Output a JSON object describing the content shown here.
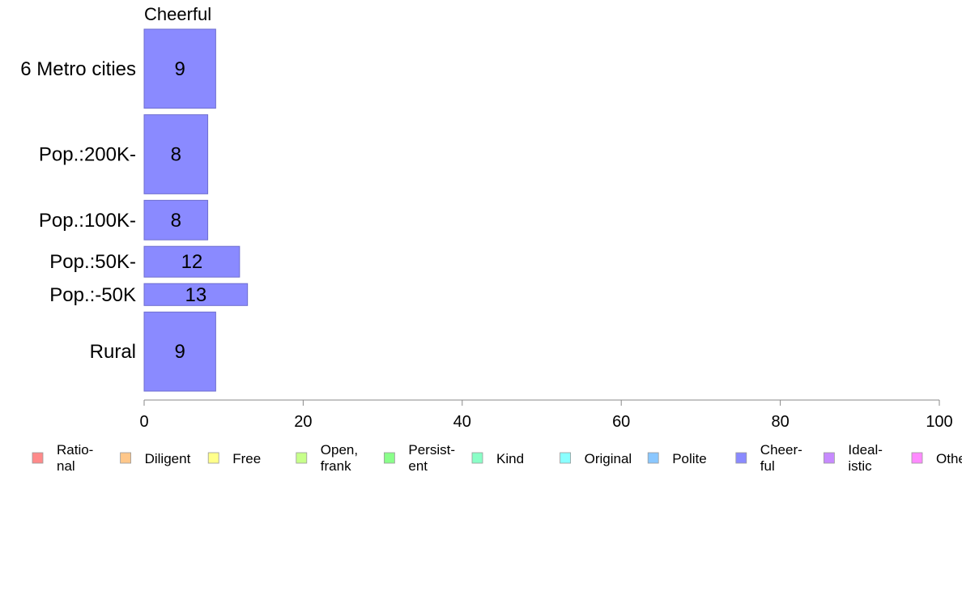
{
  "chart_data": {
    "type": "bar",
    "orientation": "horizontal",
    "title": "Cheerful",
    "categories": [
      "6 Metro cities",
      "Pop.:200K-",
      "Pop.:100K-",
      "Pop.:50K-",
      "Pop.:-50K",
      "Rural"
    ],
    "values": [
      9,
      8,
      8,
      12,
      13,
      9
    ],
    "relative_widths": [
      0.9,
      0.9,
      0.45,
      0.35,
      0.25,
      0.9
    ],
    "xlim": [
      0,
      100
    ],
    "xticks": [
      0,
      20,
      40,
      60,
      80,
      100
    ],
    "xlabel": "",
    "ylabel": "",
    "grid": false,
    "bar_color": "#8a8aff",
    "bar_stroke": "#6f6fcf",
    "legend_position": "bottom",
    "legend": [
      {
        "lines": [
          "Ratio-",
          "nal"
        ],
        "color": "#ff8a8a"
      },
      {
        "lines": [
          "Diligent"
        ],
        "color": "#ffc78a"
      },
      {
        "lines": [
          "Free"
        ],
        "color": "#ffff8a"
      },
      {
        "lines": [
          "Open,",
          "frank"
        ],
        "color": "#c7ff8a"
      },
      {
        "lines": [
          "Persist-",
          "ent"
        ],
        "color": "#8aff8a"
      },
      {
        "lines": [
          "Kind"
        ],
        "color": "#8affc7"
      },
      {
        "lines": [
          "Original"
        ],
        "color": "#8affff"
      },
      {
        "lines": [
          "Polite"
        ],
        "color": "#8ac7ff"
      },
      {
        "lines": [
          "Cheer-",
          "ful"
        ],
        "color": "#8a8aff"
      },
      {
        "lines": [
          "Ideal-",
          "istic"
        ],
        "color": "#c78aff"
      },
      {
        "lines": [
          "Other"
        ],
        "color": "#ff8aff"
      }
    ]
  }
}
